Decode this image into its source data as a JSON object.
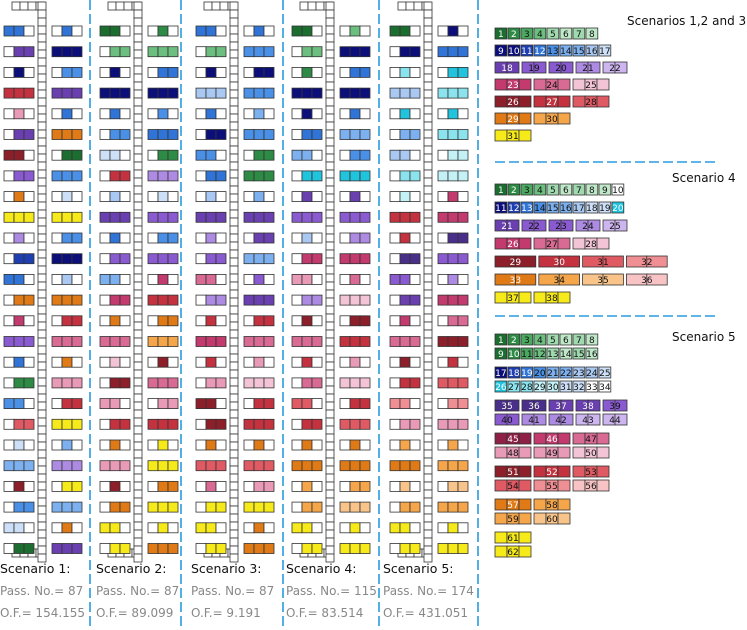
{
  "colors": {
    "g1": "#1b6e30",
    "g2": "#2e8b45",
    "g3": "#4aa85f",
    "g4": "#6cbf7e",
    "g5": "#9fd9ae",
    "g6": "#bfe8c9",
    "n1": "#0c0f7a",
    "n2": "#1f3fb0",
    "b1": "#2f74d6",
    "b2": "#4a90e6",
    "b3": "#7db0ef",
    "b4": "#a9c9f3",
    "b5": "#cde0f8",
    "c1": "#21c3dd",
    "c2": "#8be3ee",
    "c3": "#c3f1f6",
    "p1": "#4a2f8a",
    "p2": "#6a3fb0",
    "p3": "#8a5bd0",
    "p4": "#ae8be2",
    "p5": "#cdb5ef",
    "m1": "#8e1f45",
    "m2": "#c23a6e",
    "m3": "#d96a94",
    "m4": "#e89ab6",
    "m5": "#f3c4d6",
    "r1": "#8c1f2a",
    "r2": "#c4323f",
    "r3": "#e05a63",
    "r4": "#f08f93",
    "r5": "#f8c3c4",
    "o1": "#e07a16",
    "o2": "#f5a64a",
    "o3": "#f8c48a",
    "y1": "#f6ea1a",
    "line": "#2a9be0",
    "empty": "#ffffff"
  },
  "scenarios": [
    {
      "label": "Scenario 1:",
      "pass": "Pass. No.= 87",
      "of": "O.F.= 154.155"
    },
    {
      "label": "Scenario 2:",
      "pass": "Pass. No.= 87",
      "of": "O.F.= 89.099"
    },
    {
      "label": "Scenario 3:",
      "pass": "Pass. No.= 87",
      "of": "O.F.= 9.191"
    },
    {
      "label": "Scenario 4:",
      "pass": "Pass. No.= 115",
      "of": "O.F.= 83.514"
    },
    {
      "label": "Scenario 5:",
      "pass": "Pass. No.= 174",
      "of": "O.F.= 431.051"
    }
  ],
  "legends": [
    {
      "title": "Scenarios 1,2 and 3",
      "rows": [
        [
          [
            "1",
            "g1"
          ],
          [
            "2",
            "g2"
          ],
          [
            "3",
            "g3"
          ],
          [
            "4",
            "g4"
          ],
          [
            "5",
            "g5"
          ],
          [
            "6",
            "g6"
          ],
          [
            "7",
            "g5"
          ],
          [
            "8",
            "g6"
          ]
        ],
        [
          [
            "9",
            "n1"
          ],
          [
            "10",
            "n1"
          ],
          [
            "11",
            "n2"
          ],
          [
            "12",
            "b1"
          ],
          [
            "13",
            "b2"
          ],
          [
            "14",
            "b3"
          ],
          [
            "15",
            "b3"
          ],
          [
            "16",
            "b4"
          ],
          [
            "17",
            "b5"
          ]
        ],
        [
          [
            "18",
            "p2"
          ],
          [
            "19",
            "p3"
          ],
          [
            "20",
            "p3"
          ],
          [
            "21",
            "p4"
          ],
          [
            "22",
            "p5"
          ]
        ],
        [
          [
            "23",
            "m2"
          ],
          [
            "24",
            "m3"
          ],
          [
            "25",
            "m5"
          ]
        ],
        [
          [
            "26",
            "r1"
          ],
          [
            "27",
            "r2"
          ],
          [
            "28",
            "r3"
          ]
        ],
        [
          [
            "29",
            "o1"
          ],
          [
            "30",
            "o2"
          ]
        ],
        [
          [
            "31",
            "y1"
          ]
        ]
      ]
    },
    {
      "title": "Scenario 4",
      "rows": [
        [
          [
            "1",
            "g1"
          ],
          [
            "2",
            "g2"
          ],
          [
            "3",
            "g3"
          ],
          [
            "4",
            "g4"
          ],
          [
            "5",
            "g5"
          ],
          [
            "6",
            "g6"
          ],
          [
            "7",
            "g5"
          ],
          [
            "8",
            "g6"
          ],
          [
            "9",
            "g6"
          ],
          [
            "10",
            "empty"
          ]
        ],
        [
          [
            "11",
            "n1"
          ],
          [
            "12",
            "n2"
          ],
          [
            "13",
            "b1"
          ],
          [
            "14",
            "b2"
          ],
          [
            "15",
            "b3"
          ],
          [
            "16",
            "b3"
          ],
          [
            "17",
            "b4"
          ],
          [
            "18",
            "b5"
          ],
          [
            "19",
            "b5"
          ],
          [
            "20",
            "c1"
          ]
        ],
        [
          [
            "21",
            "p2"
          ],
          [
            "22",
            "p3"
          ],
          [
            "23",
            "p3"
          ],
          [
            "24",
            "p4"
          ],
          [
            "25",
            "p5"
          ]
        ],
        [
          [
            "26",
            "m2"
          ],
          [
            "27",
            "m3"
          ],
          [
            "28",
            "m5"
          ]
        ],
        [
          [
            "29",
            "r1"
          ],
          [
            "30",
            "r2"
          ],
          [
            "31",
            "r3"
          ],
          [
            "32",
            "r4"
          ]
        ],
        [
          [
            "33",
            "o1"
          ],
          [
            "34",
            "o2"
          ],
          [
            "35",
            "o3"
          ],
          [
            "36",
            "r5"
          ]
        ],
        [
          [
            "37",
            "y1"
          ],
          [
            "38",
            "y1"
          ]
        ]
      ]
    },
    {
      "title": "Scenario 5",
      "rows": [
        [
          [
            "1",
            "g1"
          ],
          [
            "2",
            "g2"
          ],
          [
            "3",
            "g3"
          ],
          [
            "4",
            "g4"
          ],
          [
            "5",
            "g5"
          ],
          [
            "6",
            "g6"
          ],
          [
            "7",
            "g5"
          ],
          [
            "8",
            "g6"
          ]
        ],
        [
          [
            "9",
            "g1"
          ],
          [
            "10",
            "g2"
          ],
          [
            "11",
            "g3"
          ],
          [
            "12",
            "g4"
          ],
          [
            "13",
            "g5"
          ],
          [
            "14",
            "g6"
          ],
          [
            "15",
            "g5"
          ],
          [
            "16",
            "g6"
          ]
        ],
        [
          [
            "17",
            "n1"
          ],
          [
            "18",
            "n2"
          ],
          [
            "19",
            "b1"
          ],
          [
            "20",
            "b2"
          ],
          [
            "21",
            "b3"
          ],
          [
            "22",
            "b3"
          ],
          [
            "23",
            "b4"
          ],
          [
            "24",
            "b4"
          ],
          [
            "25",
            "b5"
          ]
        ],
        [
          [
            "26",
            "c1"
          ],
          [
            "27",
            "c2"
          ],
          [
            "28",
            "c2"
          ],
          [
            "29",
            "c3"
          ],
          [
            "30",
            "c3"
          ],
          [
            "31",
            "b5"
          ],
          [
            "32",
            "b5"
          ],
          [
            "33",
            "empty"
          ],
          [
            "34",
            "empty"
          ]
        ],
        [
          [
            "35",
            "p1"
          ],
          [
            "36",
            "p1"
          ],
          [
            "37",
            "p2"
          ],
          [
            "38",
            "p2"
          ],
          [
            "39",
            "p3"
          ]
        ],
        [
          [
            "40",
            "p3"
          ],
          [
            "41",
            "p4"
          ],
          [
            "42",
            "p4"
          ],
          [
            "43",
            "p5"
          ],
          [
            "44",
            "p5"
          ]
        ],
        [
          [
            "45",
            "m1"
          ],
          [
            "46",
            "m2"
          ],
          [
            "47",
            "m3"
          ]
        ],
        [
          [
            "48",
            "m4"
          ],
          [
            "49",
            "m4"
          ],
          [
            "50",
            "m5"
          ]
        ],
        [
          [
            "51",
            "r1"
          ],
          [
            "52",
            "r2"
          ],
          [
            "53",
            "r3"
          ]
        ],
        [
          [
            "54",
            "r3"
          ],
          [
            "55",
            "r4"
          ],
          [
            "56",
            "r5"
          ]
        ],
        [
          [
            "57",
            "o1"
          ],
          [
            "58",
            "o2"
          ]
        ],
        [
          [
            "59",
            "o2"
          ],
          [
            "60",
            "o3"
          ]
        ],
        [
          [
            "61",
            "y1"
          ]
        ],
        [
          [
            "62",
            "y1"
          ]
        ]
      ]
    }
  ],
  "seat_columns": [
    {
      "left": [
        "b1",
        "p2",
        "n1",
        "r2",
        "m4",
        "p2",
        "r1",
        "p3",
        "o1",
        "y1",
        "p4",
        "n2",
        "b1",
        "o1",
        "m2",
        "p3",
        "b1",
        "g2",
        "b2",
        "r3",
        "b5",
        "b3",
        "r1",
        "b2",
        "b5",
        "g1"
      ],
      "right": [
        "b1",
        "n1",
        "b2",
        "p2",
        "b1",
        "o1",
        "g1",
        "b2",
        "b5",
        "y1",
        "b2",
        "n1",
        "b4",
        "o1",
        "r2",
        "m3",
        "o1",
        "m4",
        "r2",
        "y1",
        "b3",
        "p4",
        "y1",
        "b3",
        "o1",
        "p2"
      ]
    },
    {
      "left": [
        "g1",
        "g4",
        "n1",
        "n1",
        "b1",
        "b2",
        "b5",
        "r2",
        "b4",
        "p2",
        "b1",
        "p3",
        "b3",
        "m2",
        "o1",
        "m3",
        "m5",
        "r1",
        "m4",
        "r2",
        "o1",
        "m4",
        "r1",
        "o1",
        "y1",
        "y1"
      ],
      "right": [
        "g2",
        "g4",
        "b1",
        "n1",
        "b2",
        "b1",
        "g2",
        "p4",
        "b5",
        "p3",
        "b2",
        "p3",
        "m2",
        "r2",
        "o1",
        "o2",
        "r1",
        "m3",
        "m4",
        "r2",
        "y1",
        "y1",
        "o1",
        "y1",
        "y1",
        "o1"
      ]
    },
    {
      "left": [
        "b1",
        "g4",
        "n1",
        "b4",
        "b1",
        "n1",
        "b2",
        "b1",
        "b4",
        "p2",
        "p4",
        "p3",
        "m3",
        "p4",
        "r2",
        "m2",
        "r2",
        "m4",
        "r1",
        "r1",
        "o1",
        "r3",
        "m3",
        "y1",
        "y1",
        "y1"
      ],
      "right": [
        "b1",
        "b2",
        "n1",
        "b2",
        "b3",
        "b2",
        "g2",
        "g2",
        "b3",
        "p2",
        "p2",
        "b3",
        "p3",
        "p2",
        "r2",
        "m3",
        "m4",
        "m5",
        "r2",
        "r2",
        "o1",
        "r3",
        "m4",
        "y1",
        "o1",
        "o1"
      ]
    },
    {
      "left": [
        "g1",
        "g4",
        "g2",
        "n1",
        "n1",
        "b1",
        "b3",
        "c1",
        "p2",
        "p3",
        "b4",
        "m2",
        "m4",
        "p4",
        "r1",
        "m3",
        "r2",
        "m3",
        "r3",
        "r2",
        "o1",
        "o1",
        "o2",
        "o2",
        "y1",
        "y1"
      ],
      "right": [
        "g4",
        "n1",
        "b1",
        "n1",
        "b1",
        "b3",
        "b2",
        "c1",
        "p2",
        "p3",
        "p4",
        "m2",
        "m3",
        "m5",
        "r1",
        "r2",
        "m4",
        "m5",
        "r2",
        "r3",
        "o1",
        "o1",
        "o2",
        "o3",
        "y1",
        "y1"
      ]
    },
    {
      "left": [
        "g1",
        "n1",
        "c2",
        "b4",
        "c1",
        "b3",
        "b4",
        "c2",
        "c3",
        "r2",
        "r2",
        "p1",
        "p3",
        "p2",
        "m2",
        "m3",
        "r1",
        "r2",
        "r4",
        "m4",
        "o2",
        "o1",
        "o3",
        "o2",
        "y1",
        "y1"
      ],
      "right": [
        "n1",
        "b1",
        "c1",
        "c2",
        "c1",
        "c2",
        "c3",
        "c3",
        "m2",
        "m2",
        "p1",
        "p3",
        "p4",
        "m2",
        "m3",
        "r1",
        "r2",
        "r3",
        "r4",
        "m4",
        "o2",
        "o2",
        "o3",
        "o2",
        "y1",
        "y1"
      ]
    }
  ]
}
